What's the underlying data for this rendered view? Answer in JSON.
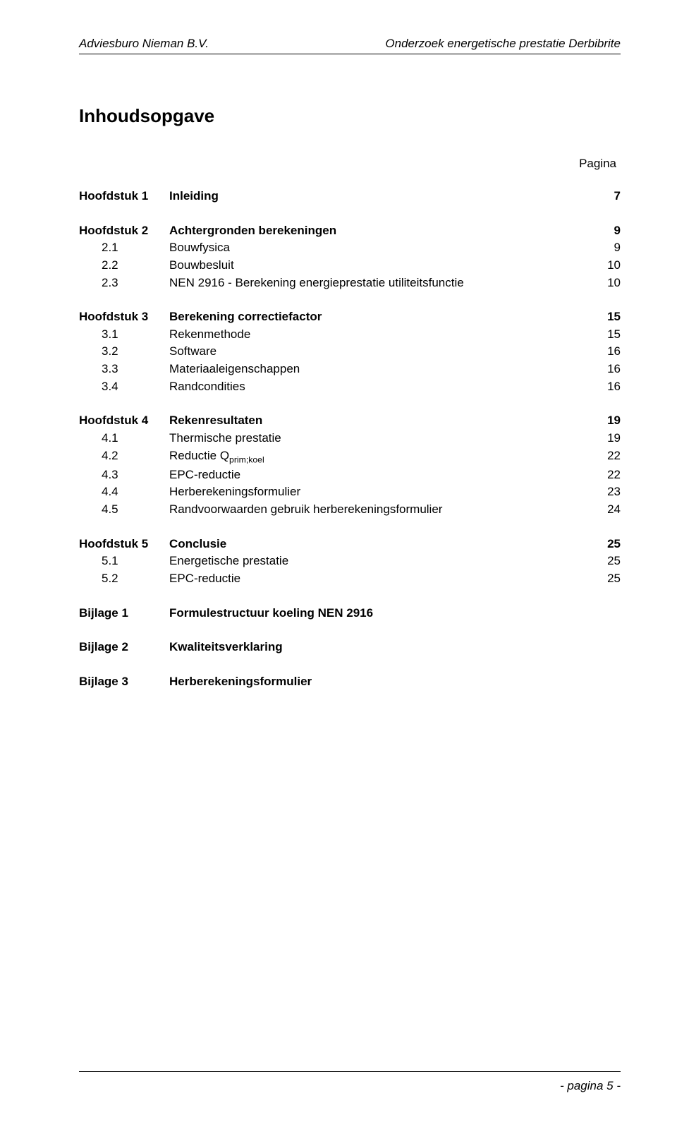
{
  "header": {
    "left": "Adviesburo Nieman B.V.",
    "right": "Onderzoek energetische prestatie Derbibrite"
  },
  "title": "Inhoudsopgave",
  "pagina_label": "Pagina",
  "chapters": [
    {
      "num": "Hoofdstuk 1",
      "label": "Inleiding",
      "page": "7",
      "sub": []
    },
    {
      "num": "Hoofdstuk 2",
      "label": "Achtergronden berekeningen",
      "page": "9",
      "sub": [
        {
          "num": "2.1",
          "label": "Bouwfysica",
          "page": "9"
        },
        {
          "num": "2.2",
          "label": "Bouwbesluit",
          "page": "10"
        },
        {
          "num": "2.3",
          "label": "NEN 2916 - Berekening energieprestatie utiliteitsfunctie",
          "page": "10"
        }
      ]
    },
    {
      "num": "Hoofdstuk 3",
      "label": "Berekening correctiefactor",
      "page": "15",
      "sub": [
        {
          "num": "3.1",
          "label": "Rekenmethode",
          "page": "15"
        },
        {
          "num": "3.2",
          "label": "Software",
          "page": "16"
        },
        {
          "num": "3.3",
          "label": "Materiaaleigenschappen",
          "page": "16"
        },
        {
          "num": "3.4",
          "label": "Randcondities",
          "page": "16"
        }
      ]
    },
    {
      "num": "Hoofdstuk 4",
      "label": "Rekenresultaten",
      "page": "19",
      "sub": [
        {
          "num": "4.1",
          "label": "Thermische prestatie",
          "page": "19"
        },
        {
          "num": "4.2",
          "label_html": "Reductie Q<sub class=\"chem\">prim;koel</sub>",
          "page": "22"
        },
        {
          "num": "4.3",
          "label": "EPC-reductie",
          "page": "22"
        },
        {
          "num": "4.4",
          "label": "Herberekeningsformulier",
          "page": "23"
        },
        {
          "num": "4.5",
          "label": "Randvoorwaarden gebruik herberekeningsformulier",
          "page": "24"
        }
      ]
    },
    {
      "num": "Hoofdstuk 5",
      "label": "Conclusie",
      "page": "25",
      "sub": [
        {
          "num": "5.1",
          "label": "Energetische prestatie",
          "page": "25"
        },
        {
          "num": "5.2",
          "label": "EPC-reductie",
          "page": "25"
        }
      ]
    }
  ],
  "bijlagen": [
    {
      "num": "Bijlage 1",
      "label": "Formulestructuur koeling NEN 2916"
    },
    {
      "num": "Bijlage 2",
      "label": "Kwaliteitsverklaring"
    },
    {
      "num": "Bijlage 3",
      "label": "Herberekeningsformulier"
    }
  ],
  "footer": "- pagina 5 -"
}
